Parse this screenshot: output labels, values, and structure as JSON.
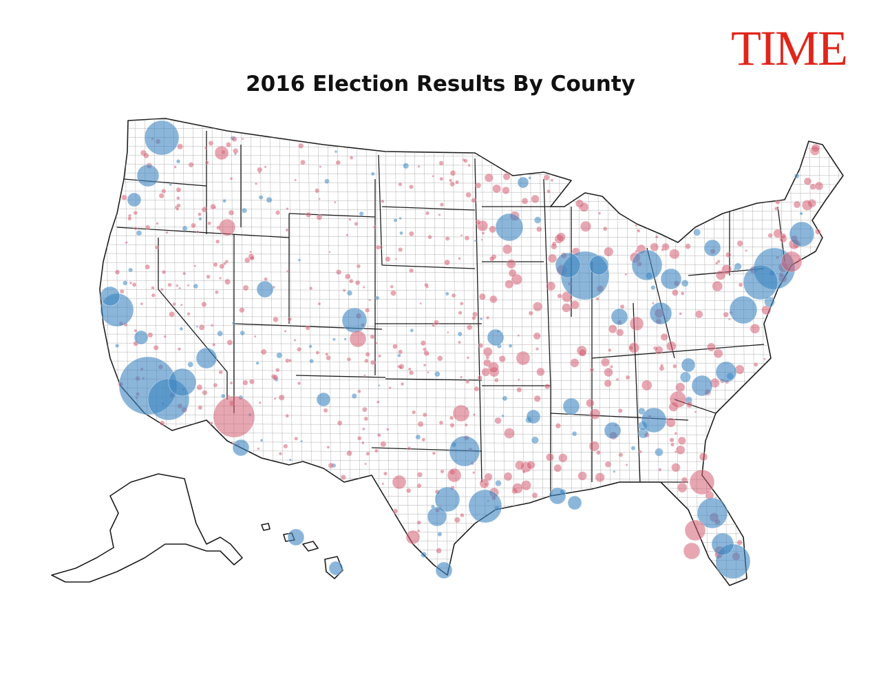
{
  "header": {
    "logo": "TIME",
    "title": "2016 Election Results By County"
  },
  "colors": {
    "democrat": "#3d86c2",
    "republican": "#d45f72",
    "border": "#1a1a1a",
    "logo": "#e1251b"
  }
}
